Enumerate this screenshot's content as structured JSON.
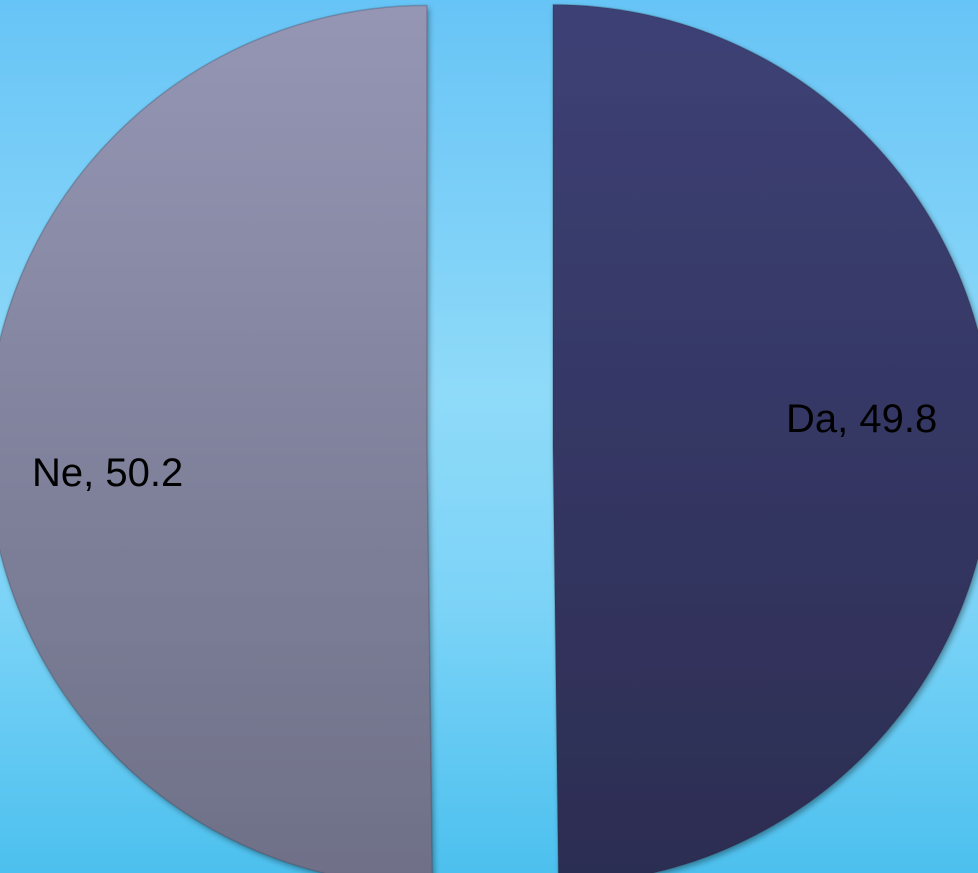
{
  "chart_data": {
    "type": "pie",
    "title": "",
    "slices": [
      {
        "label": "Da",
        "value": 49.8,
        "display": "Da, 49.8",
        "color": "#353766"
      },
      {
        "label": "Ne",
        "value": 50.2,
        "display": "Ne, 50.2",
        "color": "#7d7f99"
      }
    ],
    "exploded": true,
    "legend": "none",
    "background": "#7fd2f7"
  }
}
